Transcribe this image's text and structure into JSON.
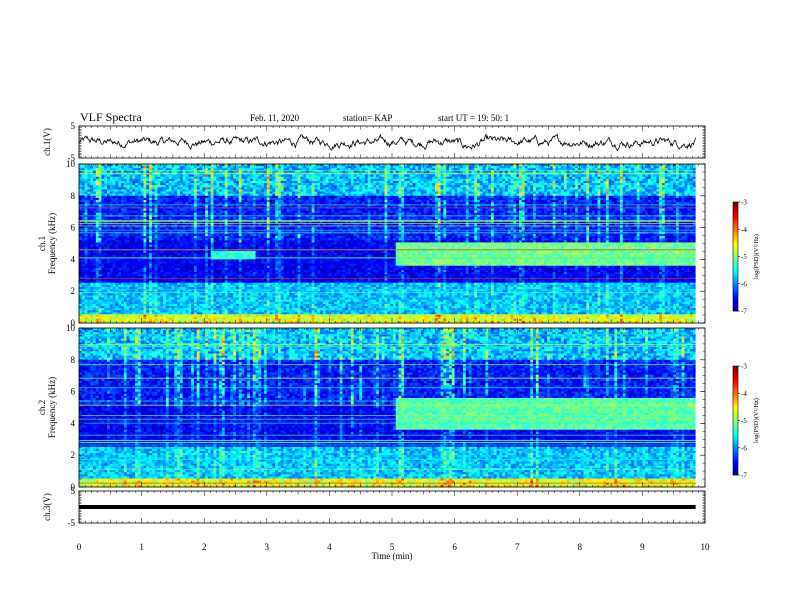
{
  "header": {
    "title": "VLF Spectra",
    "date": "Feb. 11, 2020",
    "station": "station= KAP",
    "start_ut": "start  UT =   19: 50: 1"
  },
  "chart_data": [
    {
      "type": "line",
      "name": "ch1-waveform",
      "ylabel": "ch.1(V)",
      "xlim": [
        0,
        10
      ],
      "ylim": [
        -5,
        5
      ],
      "yticks": [
        "5",
        "-5"
      ],
      "data_end_min": 9.85,
      "description_level": "noisy waveform around 0 V, amplitude about ±1.5 V"
    },
    {
      "type": "heatmap",
      "name": "ch1-spectrogram",
      "ylabel": "ch.1\nFrequency  (kHz)",
      "xlim": [
        0,
        10
      ],
      "ylim": [
        0,
        10
      ],
      "yticks": [
        "0",
        "2",
        "4",
        "6",
        "8",
        "10"
      ],
      "data_end_min": 9.85,
      "colorbar": {
        "label": "log(PSD)(V²/Hz)",
        "range": [
          -7,
          -3
        ],
        "ticks": [
          "-3",
          "-4",
          "-5",
          "-6",
          "-7"
        ]
      },
      "features": [
        {
          "x_start": 5.05,
          "x_end": 9.85,
          "f_low": 3.6,
          "f_high": 5.0,
          "level": -4.8
        },
        {
          "x_start": 2.1,
          "x_end": 2.8,
          "f_low": 4.0,
          "f_high": 4.6,
          "level": -5.1
        }
      ]
    },
    {
      "type": "heatmap",
      "name": "ch2-spectrogram",
      "ylabel": "ch.2\nFrequency  (kHz)",
      "xlim": [
        0,
        10
      ],
      "ylim": [
        0,
        10
      ],
      "yticks": [
        "0",
        "2",
        "4",
        "6",
        "8",
        "10"
      ],
      "data_end_min": 9.85,
      "colorbar": {
        "label": "log(PSD)(V²/Hz)",
        "range": [
          -7,
          -3
        ],
        "ticks": [
          "-3",
          "-4",
          "-5",
          "-6",
          "-7"
        ]
      },
      "features": [
        {
          "x_start": 5.05,
          "x_end": 9.85,
          "f_low": 3.6,
          "f_high": 5.6,
          "level": -4.9
        }
      ]
    },
    {
      "type": "line",
      "name": "ch3-waveform",
      "ylabel": "ch.3(V)",
      "xlabel": "Time  (min)",
      "xlim": [
        0,
        10
      ],
      "ylim": [
        -5,
        5
      ],
      "yticks": [
        "5",
        "-5"
      ],
      "xticks": [
        "0",
        "1",
        "2",
        "3",
        "4",
        "5",
        "6",
        "7",
        "8",
        "9",
        "10"
      ],
      "data_end_min": 9.85,
      "constant_value": 0
    }
  ]
}
